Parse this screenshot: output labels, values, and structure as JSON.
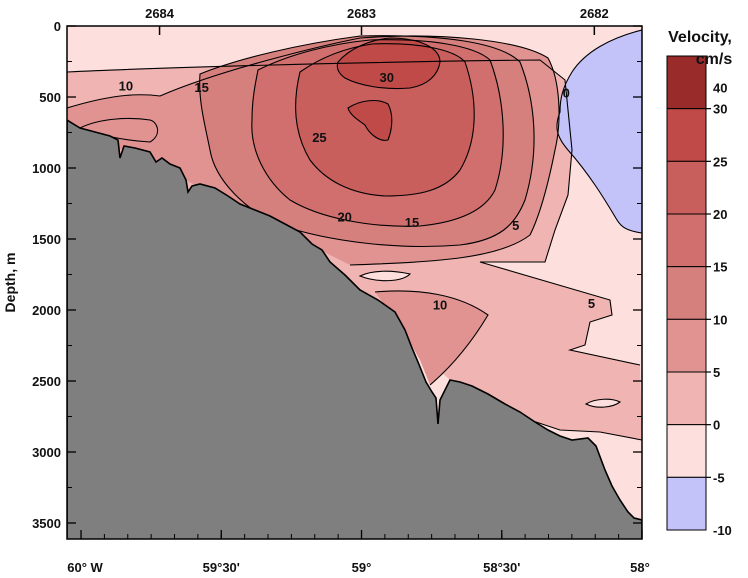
{
  "chart_data": {
    "type": "contour",
    "ylabel": "Depth, m",
    "colorbar_title": "Velocity,",
    "colorbar_unit": "cm/s",
    "x_ticks": [
      {
        "value": 60.0,
        "label": "60° W"
      },
      {
        "value": 59.5,
        "label": "59°30'"
      },
      {
        "value": 59.0,
        "label": "59°"
      },
      {
        "value": 58.5,
        "label": "58°30'"
      },
      {
        "value": 58.0,
        "label": "58°"
      }
    ],
    "x_range": [
      60.05,
      58.0
    ],
    "y_ticks": [
      0,
      500,
      1000,
      1500,
      2000,
      2500,
      3000,
      3500
    ],
    "y_range": [
      0,
      3500
    ],
    "stations": [
      {
        "label": "2684",
        "x": 59.72
      },
      {
        "label": "2683",
        "x": 59.0
      },
      {
        "label": "2682",
        "x": 58.17
      }
    ],
    "levels": [
      -10,
      -5,
      0,
      5,
      10,
      15,
      20,
      25,
      30,
      40
    ],
    "colorbar_labels": [
      "40",
      "30",
      "25",
      "20",
      "15",
      "10",
      "5",
      "0",
      "-5",
      "-10"
    ],
    "level_colors": {
      "neg": "#c3c3fa",
      "c0_5": "#fde0de",
      "c5_10": "#f0b4b2",
      "c10_15": "#e09391",
      "c15_20": "#d6807e",
      "c20_25": "#d06f6d",
      "c25_30": "#c85f5d",
      "c30_40": "#c04a48",
      "c40": "#9a2b2b",
      "bottom": "#7f7f7f"
    },
    "contour_labels": [
      {
        "text": "10",
        "x": 59.84,
        "y": 420
      },
      {
        "text": "15",
        "x": 59.57,
        "y": 430
      },
      {
        "text": "30",
        "x": 58.91,
        "y": 360
      },
      {
        "text": "0",
        "x": 58.27,
        "y": 470
      },
      {
        "text": "25",
        "x": 59.15,
        "y": 780
      },
      {
        "text": "20",
        "x": 59.06,
        "y": 1340
      },
      {
        "text": "15",
        "x": 58.82,
        "y": 1380
      },
      {
        "text": "5",
        "x": 58.45,
        "y": 1400
      },
      {
        "text": "10",
        "x": 58.72,
        "y": 1960
      },
      {
        "text": "5",
        "x": 58.18,
        "y": 1950
      }
    ],
    "grid": false
  }
}
